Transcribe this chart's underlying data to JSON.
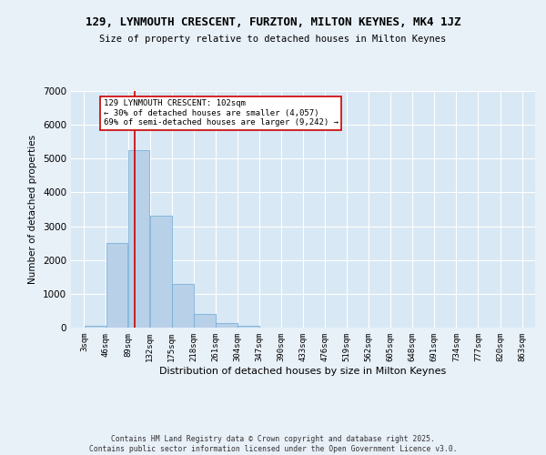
{
  "title": "129, LYNMOUTH CRESCENT, FURZTON, MILTON KEYNES, MK4 1JZ",
  "subtitle": "Size of property relative to detached houses in Milton Keynes",
  "xlabel": "Distribution of detached houses by size in Milton Keynes",
  "ylabel": "Number of detached properties",
  "bar_color": "#b8d0e8",
  "bar_edge_color": "#6aaad4",
  "background_color": "#d8e8f4",
  "fig_background_color": "#e8f0f8",
  "grid_color": "#ffffff",
  "red_line_x": 102,
  "annotation_text": "129 LYNMOUTH CRESCENT: 102sqm\n← 30% of detached houses are smaller (4,057)\n69% of semi-detached houses are larger (9,242) →",
  "annotation_box_facecolor": "#ffffff",
  "annotation_border_color": "#cc0000",
  "footer_text": "Contains HM Land Registry data © Crown copyright and database right 2025.\nContains public sector information licensed under the Open Government Licence v3.0.",
  "bin_edges": [
    3,
    46,
    89,
    132,
    175,
    218,
    261,
    304,
    347,
    390,
    433,
    476,
    519,
    562,
    605,
    648,
    691,
    734,
    777,
    820,
    863
  ],
  "bin_labels": [
    "3sqm",
    "46sqm",
    "89sqm",
    "132sqm",
    "175sqm",
    "218sqm",
    "261sqm",
    "304sqm",
    "347sqm",
    "390sqm",
    "433sqm",
    "476sqm",
    "519sqm",
    "562sqm",
    "605sqm",
    "648sqm",
    "691sqm",
    "734sqm",
    "777sqm",
    "820sqm",
    "863sqm"
  ],
  "bar_heights": [
    50,
    2500,
    5250,
    3300,
    1300,
    400,
    130,
    50,
    0,
    0,
    0,
    0,
    0,
    0,
    0,
    0,
    0,
    0,
    0,
    0
  ],
  "ylim": [
    0,
    7000
  ],
  "yticks": [
    0,
    1000,
    2000,
    3000,
    4000,
    5000,
    6000,
    7000
  ]
}
